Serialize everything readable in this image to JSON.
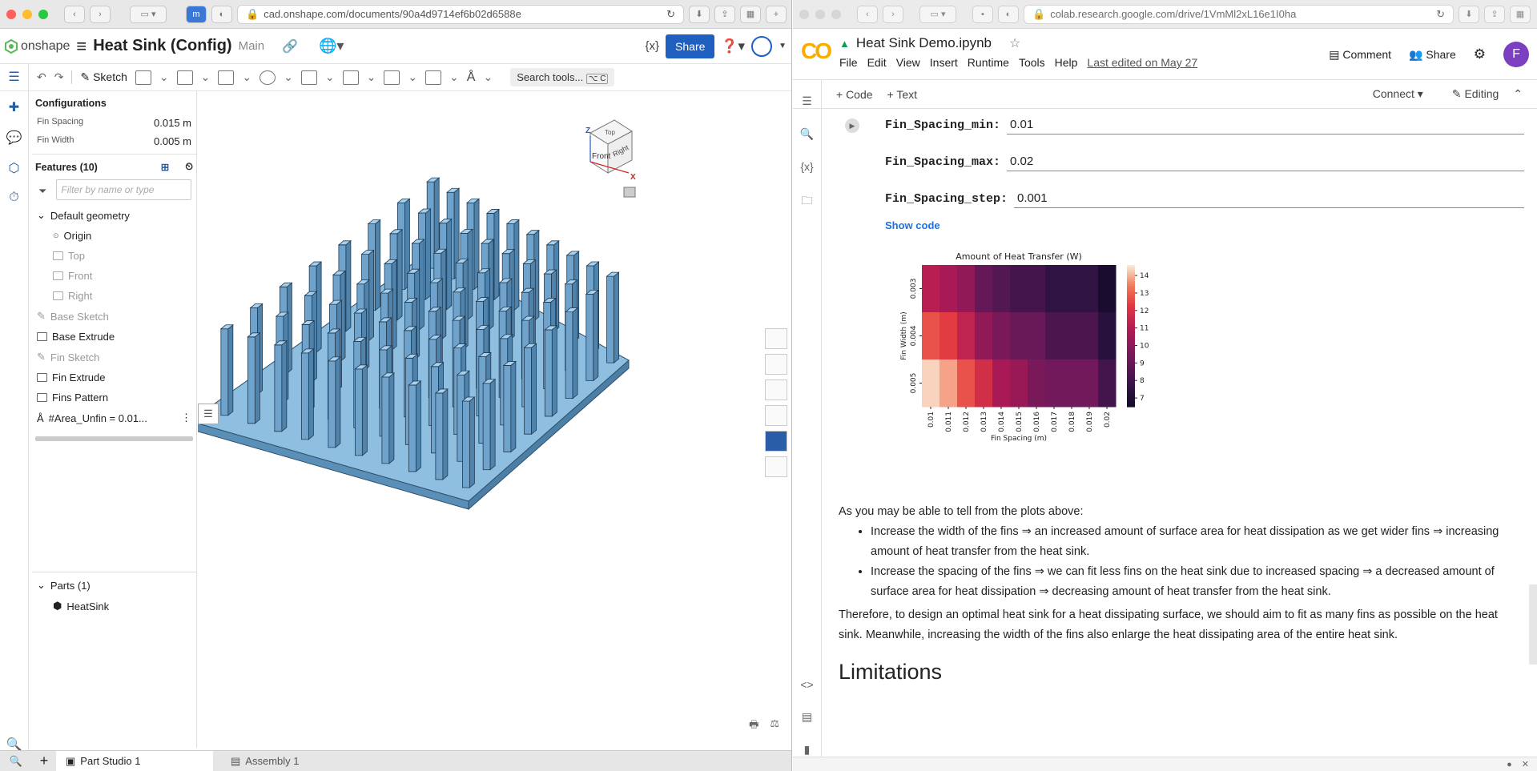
{
  "left_browser": {
    "url": "cad.onshape.com/documents/90a4d9714ef6b02d6588e"
  },
  "onshape": {
    "brand": "onshape",
    "doc_title": "Heat Sink (Config)",
    "branch": "Main",
    "share_label": "Share",
    "variable_label": "{x}",
    "sketch_label": "Sketch",
    "search_tools": "Search tools...",
    "search_shortcut": "⌥ C",
    "configurations_title": "Configurations",
    "configs": [
      {
        "name": "Fin Spacing",
        "value": "0.015 m"
      },
      {
        "name": "Fin Width",
        "value": "0.005 m"
      }
    ],
    "features_title": "Features (10)",
    "filter_placeholder": "Filter by name or type",
    "default_geometry": "Default geometry",
    "default_items": [
      "Origin",
      "Top",
      "Front",
      "Right"
    ],
    "features": [
      "Base Sketch",
      "Base Extrude",
      "Fin Sketch",
      "Fin Extrude",
      "Fins Pattern",
      "#Area_Unfin = 0.01..."
    ],
    "parts_title": "Parts (1)",
    "part": "HeatSink",
    "viewcube": {
      "top": "Top",
      "front": "Front",
      "right": "Right",
      "z": "Z",
      "x": "X"
    },
    "tabs": [
      "Part Studio 1",
      "Assembly 1"
    ]
  },
  "right_browser": {
    "url": "colab.research.google.com/drive/1VmMl2xL16e1I0ha"
  },
  "colab": {
    "notebook_title": "Heat Sink Demo.ipynb",
    "comment": "Comment",
    "share": "Share",
    "avatar": "F",
    "menu": [
      "File",
      "Edit",
      "View",
      "Insert",
      "Runtime",
      "Tools",
      "Help"
    ],
    "last_edited": "Last edited on May 27",
    "add_code": "+ Code",
    "add_text": "+ Text",
    "connect": "Connect",
    "editing": "Editing",
    "params": [
      {
        "key": "Fin_Spacing_min:",
        "value": "0.01"
      },
      {
        "key": "Fin_Spacing_max:",
        "value": "0.02"
      },
      {
        "key": "Fin_Spacing_step:",
        "value": "0.001"
      }
    ],
    "show_code": "Show code",
    "intro": "As you may be able to tell from the plots above:",
    "bullets": [
      "Increase the width of the fins ⇒ an increased amount of surface area for heat dissipation as we get wider fins ⇒ increasing amount of heat transfer from the heat sink.",
      "Increase the spacing of the fins ⇒ we can fit less fins on the heat sink due to increased spacing ⇒ a decreased amount of surface area for heat dissipation ⇒ decreasing amount of heat transfer from the heat sink."
    ],
    "conclusion": "Therefore, to design an optimal heat sink for a heat dissipating surface, we should aim to fit as many fins as possible on the heat sink. Meanwhile, increasing the width of the fins also enlarge the heat dissipating area of the entire heat sink.",
    "next_heading": "Limitations"
  },
  "chart_data": {
    "type": "heatmap",
    "title": "Amount of Heat Transfer (W)",
    "xlabel": "Fin Spacing (m)",
    "ylabel": "Fin Width (m)",
    "x": [
      "0.01",
      "0.011",
      "0.012",
      "0.013",
      "0.014",
      "0.015",
      "0.016",
      "0.017",
      "0.018",
      "0.019",
      "0.02"
    ],
    "y": [
      "0.003",
      "0.004",
      "0.005"
    ],
    "values": [
      [
        11.2,
        10.8,
        10.2,
        9.1,
        8.6,
        8.2,
        8.2,
        7.6,
        7.6,
        7.6,
        6.8
      ],
      [
        12.8,
        12.4,
        11.4,
        10.2,
        9.6,
        9.2,
        9.2,
        8.4,
        8.4,
        8.4,
        7.4
      ],
      [
        14.4,
        13.9,
        12.8,
        11.9,
        10.8,
        10.4,
        9.6,
        9.4,
        9.4,
        9.4,
        8.2
      ]
    ],
    "colorbar_ticks": [
      "14",
      "13",
      "12",
      "11",
      "10",
      "9",
      "8",
      "7"
    ],
    "zlim": [
      6.5,
      14.6
    ],
    "colormap": "rocket"
  }
}
